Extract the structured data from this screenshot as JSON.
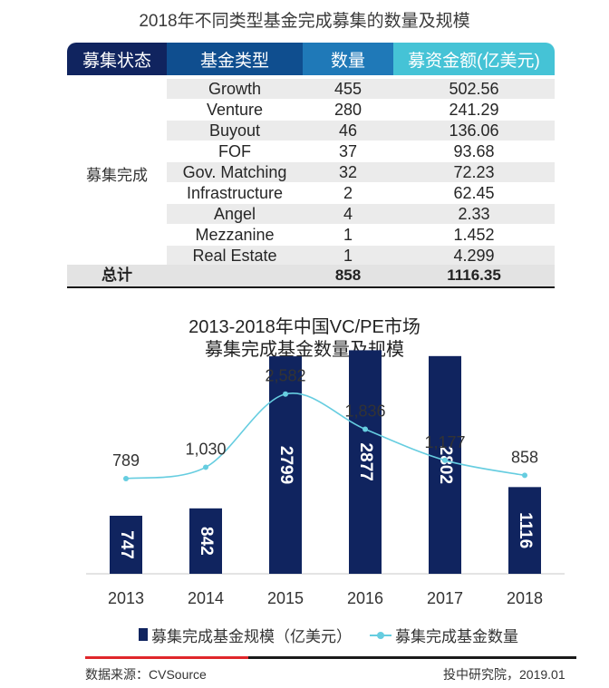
{
  "table": {
    "title": "2018年不同类型基金完成募集的数量及规模",
    "headers": [
      "募集状态",
      "基金类型",
      "数量",
      "募资金额(亿美元)"
    ],
    "status_label": "募集完成",
    "rows": [
      {
        "type": "Growth",
        "count": "455",
        "amount": "502.56"
      },
      {
        "type": "Venture",
        "count": "280",
        "amount": "241.29"
      },
      {
        "type": "Buyout",
        "count": "46",
        "amount": "136.06"
      },
      {
        "type": "FOF",
        "count": "37",
        "amount": "93.68"
      },
      {
        "type": "Gov. Matching",
        "count": "32",
        "amount": "72.23"
      },
      {
        "type": "Infrastructure",
        "count": "2",
        "amount": "62.45"
      },
      {
        "type": "Angel",
        "count": "4",
        "amount": "2.33"
      },
      {
        "type": "Mezzanine",
        "count": "1",
        "amount": "1.452"
      },
      {
        "type": "Real Estate",
        "count": "1",
        "amount": "4.299"
      }
    ],
    "total": {
      "label": "总计",
      "count": "858",
      "amount": "1116.35"
    }
  },
  "chart_data": {
    "type": "bar",
    "title": "2013-2018年中国VC/PE市场",
    "subtitle": "募集完成基金数量及规模",
    "categories": [
      "2013",
      "2014",
      "2015",
      "2016",
      "2017",
      "2018"
    ],
    "series": [
      {
        "name": "募集完成基金规模（亿美元）",
        "kind": "bar",
        "values": [
          747,
          842,
          2799,
          2877,
          2802,
          1116
        ],
        "labels": [
          "747",
          "842",
          "2799",
          "2877",
          "2802",
          "1116"
        ],
        "color": "#10245f"
      },
      {
        "name": "募集完成基金数量",
        "kind": "line",
        "values": [
          789,
          1030,
          2582,
          1836,
          1177,
          858
        ],
        "labels": [
          "789",
          "1,030",
          "2,582",
          "1,836",
          "1,177",
          "858"
        ],
        "color": "#66cde0"
      }
    ],
    "xlabel": "",
    "ylabel": "",
    "bar_max": 3500,
    "line_max": 3500,
    "legend_position": "bottom"
  },
  "footer": {
    "source": "数据来源：CVSource",
    "credit": "投中研究院，2019.01"
  }
}
